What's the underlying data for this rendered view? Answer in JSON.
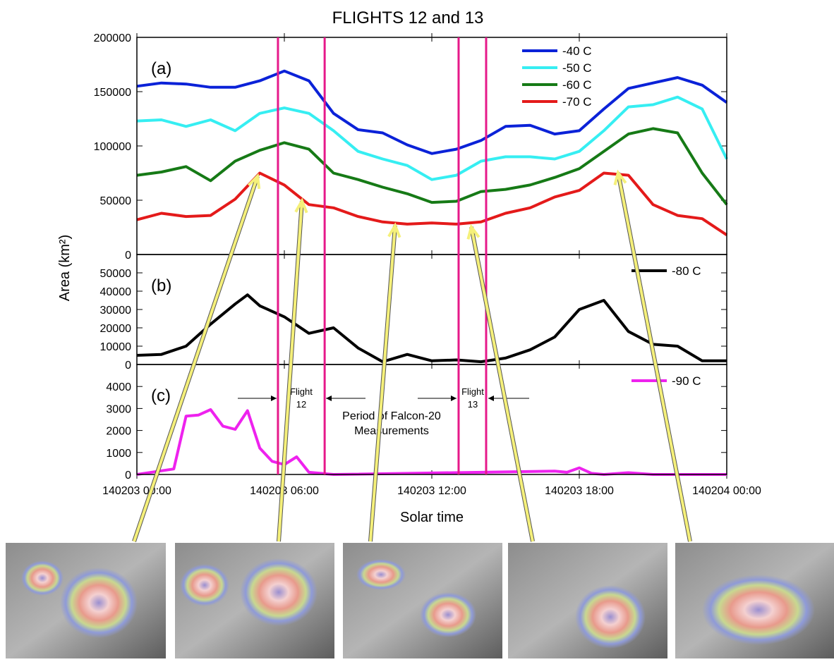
{
  "title": "FLIGHTS 12 and 13",
  "x_label": "Solar time",
  "y_label": "Area (km²)",
  "flight_lines": [
    5.74,
    7.64,
    13.09,
    14.21
  ],
  "flight_line_color": "#e6198a",
  "annotations": [
    [
      "Flight",
      "12"
    ],
    [
      "Period of Falcon-20",
      "Measurements"
    ],
    [
      "Flight",
      "13"
    ]
  ],
  "chart_data": [
    {
      "type": "line",
      "panel_label": "(a)",
      "legend": "upper right",
      "xlim": [
        0,
        24
      ],
      "ylim": [
        0,
        200000
      ],
      "yticks": [
        0,
        50000,
        100000,
        150000,
        200000
      ],
      "x": [
        0,
        1,
        2,
        3,
        4,
        5,
        6,
        7,
        8,
        9,
        10,
        11,
        12,
        13,
        14,
        15,
        16,
        17,
        18,
        19,
        20,
        21,
        22,
        23,
        24
      ],
      "series": [
        {
          "name": "-40 C",
          "color": "#0b22d8",
          "values": [
            155000,
            158000,
            157000,
            154000,
            154000,
            160000,
            169000,
            160000,
            130000,
            115000,
            112000,
            101000,
            93000,
            97000,
            105000,
            118000,
            119000,
            111000,
            114000,
            134000,
            153000,
            158000,
            163000,
            156000,
            140000
          ]
        },
        {
          "name": "-50 C",
          "color": "#36eef2",
          "values": [
            123000,
            124000,
            118000,
            124000,
            114000,
            130000,
            135000,
            130000,
            114000,
            95000,
            88000,
            82000,
            69000,
            73000,
            86000,
            90000,
            90000,
            88000,
            95000,
            114000,
            136000,
            138000,
            145000,
            134000,
            88000
          ]
        },
        {
          "name": "-60 C",
          "color": "#167a16",
          "values": [
            73000,
            76000,
            81000,
            68000,
            86000,
            96000,
            103000,
            97000,
            75000,
            69000,
            62000,
            56000,
            48000,
            49000,
            58000,
            60000,
            64000,
            71000,
            79000,
            95000,
            111000,
            116000,
            112000,
            75000,
            46000
          ]
        },
        {
          "name": "-70 C",
          "color": "#e41a1a",
          "values": [
            32000,
            38000,
            35000,
            36000,
            51000,
            75000,
            64000,
            46000,
            43000,
            35000,
            30000,
            28000,
            29000,
            28000,
            30000,
            38000,
            43000,
            53000,
            59000,
            75000,
            73000,
            46000,
            36000,
            33000,
            18000
          ]
        }
      ]
    },
    {
      "type": "line",
      "panel_label": "(b)",
      "legend": "upper right",
      "xlim": [
        0,
        24
      ],
      "ylim": [
        0,
        60000
      ],
      "yticks": [
        0,
        10000,
        20000,
        30000,
        40000,
        50000
      ],
      "x": [
        0,
        1,
        2,
        3,
        4,
        4.5,
        5,
        6,
        7,
        8,
        9,
        10,
        11,
        12,
        13,
        14,
        15,
        16,
        17,
        18,
        19,
        20,
        21,
        22,
        23,
        24
      ],
      "series": [
        {
          "name": "-80 C",
          "color": "#000000",
          "values": [
            5000,
            5500,
            10000,
            22000,
            33000,
            38000,
            32000,
            26000,
            17000,
            20000,
            9000,
            1500,
            5500,
            2000,
            2500,
            1500,
            3500,
            8000,
            15000,
            30000,
            35000,
            18000,
            11000,
            10000,
            2000,
            2000
          ]
        }
      ]
    },
    {
      "type": "line",
      "panel_label": "(c)",
      "legend": "upper right",
      "xlim": [
        0,
        24
      ],
      "ylim": [
        0,
        5000
      ],
      "yticks": [
        0,
        1000,
        2000,
        3000,
        4000
      ],
      "xticks": [
        {
          "value": 0,
          "label": "140203 00:00"
        },
        {
          "value": 6,
          "label": "140203 06:00"
        },
        {
          "value": 12,
          "label": "140203 12:00"
        },
        {
          "value": 18,
          "label": "140203 18:00"
        },
        {
          "value": 24,
          "label": "140204 00:00"
        }
      ],
      "x": [
        0,
        1.5,
        2,
        2.5,
        3,
        3.5,
        4,
        4.5,
        5,
        5.5,
        6,
        6.5,
        7,
        8,
        17,
        17.5,
        18,
        18.5,
        19,
        20,
        21,
        24
      ],
      "series": [
        {
          "name": "-90 C",
          "color": "#ee22ee",
          "values": [
            0,
            250,
            2650,
            2700,
            2950,
            2200,
            2050,
            2900,
            1200,
            600,
            450,
            800,
            100,
            0,
            150,
            100,
            300,
            50,
            0,
            80,
            0,
            0
          ]
        }
      ]
    }
  ]
}
